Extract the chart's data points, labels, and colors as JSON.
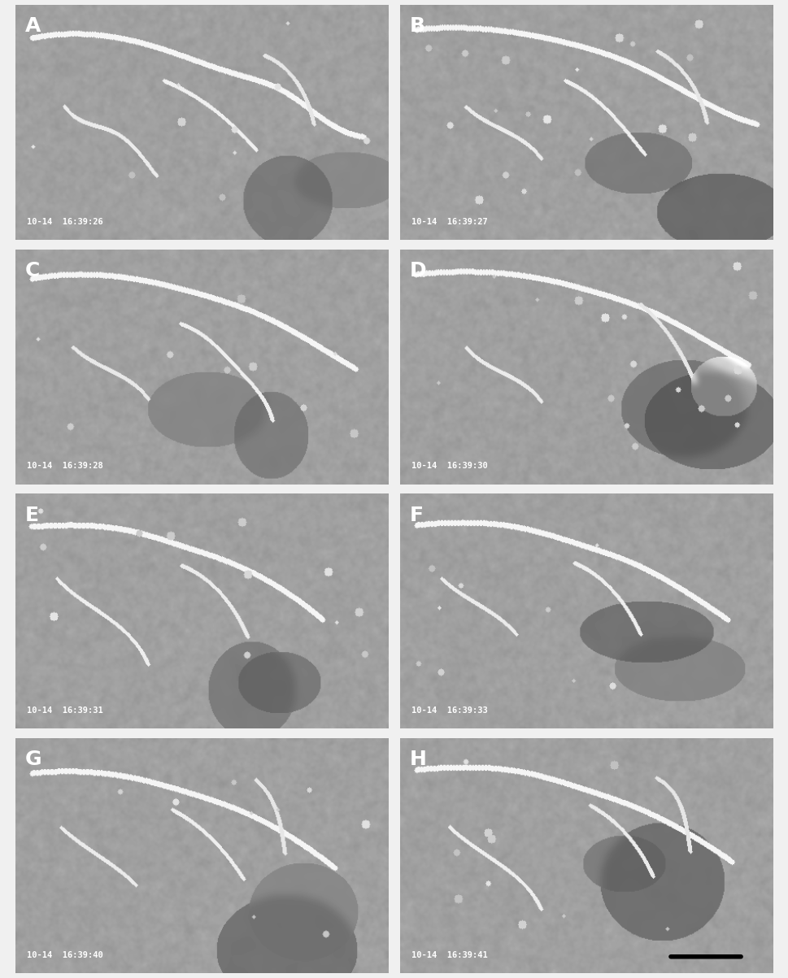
{
  "panels": [
    "A",
    "B",
    "C",
    "D",
    "E",
    "F",
    "G",
    "H"
  ],
  "timestamps": [
    "10-14  16:39:26",
    "10-14  16:39:27",
    "10-14  16:39:28",
    "10-14  16:39:30",
    "10-14  16:39:31",
    "10-14  16:39:33",
    "10-14  16:39:40",
    "10-14  16:39:41"
  ],
  "nrows": 4,
  "ncols": 2,
  "background_color": "#d8d8d8",
  "figure_bg": "#e8e8e8",
  "label_fontsize": 18,
  "timestamp_fontsize": 7.5,
  "scale_bar_color": "#000000",
  "panel_bg_mean": 160,
  "panel_bg_std": 25
}
